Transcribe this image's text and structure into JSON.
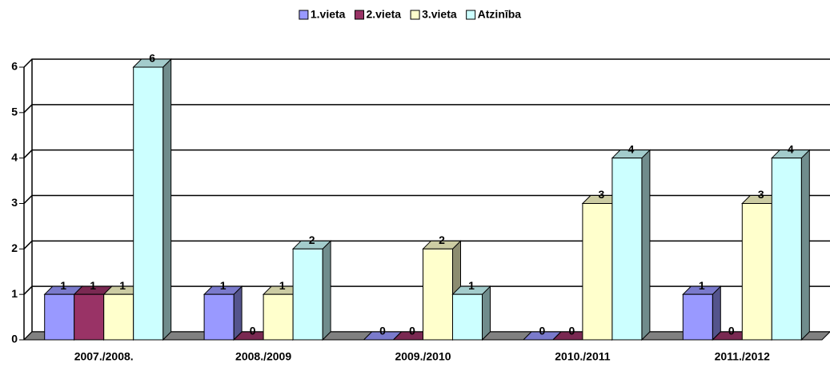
{
  "chart_data": {
    "type": "bar3d",
    "categories": [
      "2007./2008.",
      "2008./2009",
      "2009./2010",
      "2010./2011",
      "2011./2012"
    ],
    "series": [
      {
        "name": "1.vieta",
        "color": "#9999ff",
        "values": [
          1,
          1,
          0,
          0,
          1
        ]
      },
      {
        "name": "2.vieta",
        "color": "#993366",
        "values": [
          1,
          0,
          0,
          0,
          0
        ]
      },
      {
        "name": "3.vieta",
        "color": "#ffffcc",
        "values": [
          1,
          1,
          2,
          3,
          3
        ]
      },
      {
        "name": "Atzinība",
        "color": "#ccffff",
        "values": [
          6,
          2,
          1,
          4,
          4
        ]
      }
    ],
    "ylim": [
      0,
      6
    ],
    "yticks": [
      0,
      1,
      2,
      3,
      4,
      5,
      6
    ],
    "grid": true,
    "legend": "top"
  }
}
